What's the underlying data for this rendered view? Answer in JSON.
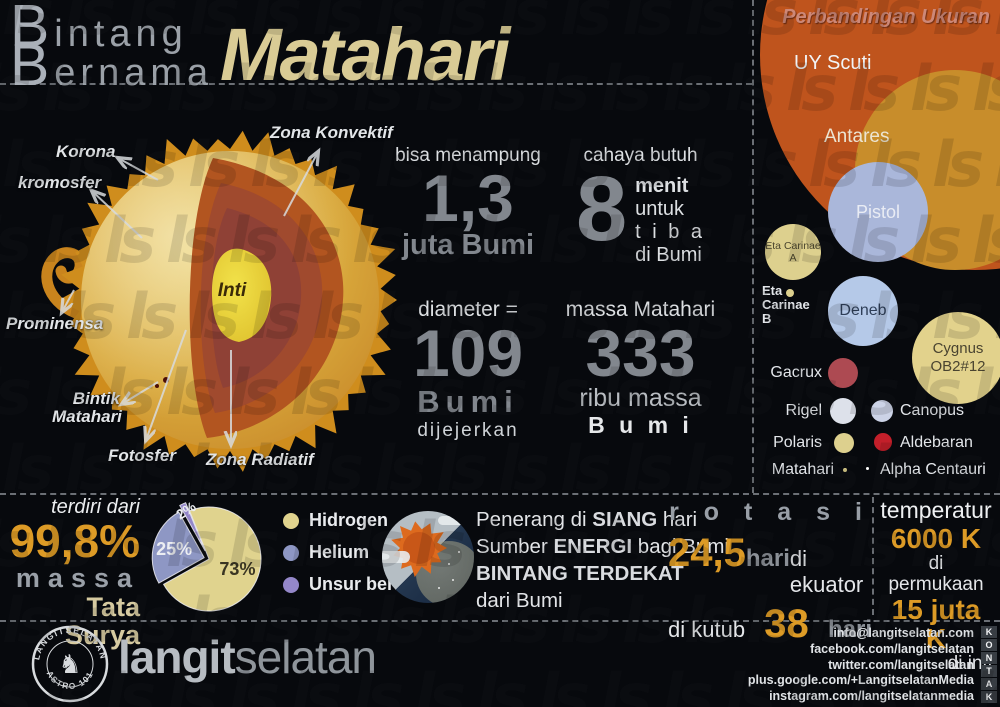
{
  "header": {
    "title_thin_1": "Bintang",
    "title_thin_2": "Bernama",
    "title_main": "Matahari",
    "accent_color": "#d9cb95"
  },
  "sun_diagram": {
    "labels": {
      "korona": "Korona",
      "kromosfer": "kromosfer",
      "zona_konvektif": "Zona Konvektif",
      "prominensa": "Prominensa",
      "bintik_1": "Bintik",
      "bintik_2": "Matahari",
      "fotosfer": "Fotosfer",
      "zona_radiatif": "Zona Radiatif",
      "inti": "Inti"
    }
  },
  "stats": {
    "capacity": {
      "label": "bisa menampung",
      "value": "1,3",
      "unit": "juta Bumi"
    },
    "light_travel": {
      "label": "cahaya butuh",
      "value": "8",
      "unit_1": "menit",
      "unit_2": "untuk",
      "unit_3": "t i b a",
      "unit_4": "di Bumi"
    },
    "diameter": {
      "label": "diameter =",
      "value": "109",
      "unit": "Bumi",
      "note": "dijejerkan"
    },
    "mass": {
      "label": "massa Matahari",
      "value": "333",
      "unit_1": "ribu massa",
      "unit_2": "B u m i"
    }
  },
  "size_comparison": {
    "title": "Perbandingan Ukuran",
    "title_color": "#cd8878",
    "stars": {
      "uy_scuti": {
        "name": "UY Scuti",
        "color": "#bf541d"
      },
      "antares": {
        "name": "Antares",
        "color": "#c88d2b"
      },
      "pistol": {
        "name": "Pistol",
        "color": "#aab7da"
      },
      "eta_carinae_a": {
        "name": "Eta Carinae A",
        "color": "#ddd08e"
      },
      "eta_carinae_b": {
        "name": "Eta Carinae B",
        "color": "#ddd08e"
      },
      "deneb": {
        "name": "Deneb",
        "color": "#b5c9e8"
      },
      "cygnus_ob2_12": {
        "name": "Cygnus OB2#12",
        "color": "#e2d28c"
      },
      "gacrux": {
        "name": "Gacrux",
        "color": "#ad4a52"
      },
      "rigel": {
        "name": "Rigel",
        "color": "#dde1ea"
      },
      "canopus": {
        "name": "Canopus",
        "color": "#ccd3e6"
      },
      "polaris": {
        "name": "Polaris",
        "color": "#ddd08e"
      },
      "aldebaran": {
        "name": "Aldebaran",
        "color": "#c31f2a"
      },
      "matahari": {
        "name": "Matahari",
        "color": "#e0d38e"
      },
      "alpha_centauri": {
        "name": "Alpha Centauri",
        "color": "#ffffff"
      }
    }
  },
  "composition": {
    "intro": "terdiri dari",
    "value": "99,8%",
    "label_1": "massa",
    "label_2": "Tata Surya",
    "value_color": "#dd9b26"
  },
  "chart_data": {
    "type": "pie",
    "labels": [
      "Hidrogen",
      "Helium",
      "Unsur berat"
    ],
    "values": [
      73,
      25,
      2
    ],
    "value_labels": [
      "73%",
      "25%",
      "2%"
    ],
    "colors": [
      "#e0d38e",
      "#8e97c4",
      "#9487c9"
    ],
    "legend_position": "right"
  },
  "facts": {
    "line1_pre": "Penerang di ",
    "line1_bold": "SIANG",
    "line1_post": " hari",
    "line2_pre": "Sumber ",
    "line2_bold": "ENERGI",
    "line2_post": " bagi Bumi",
    "line3_bold": "BINTANG TERDEKAT",
    "line4": "dari Bumi"
  },
  "rotation": {
    "title": "r o t a s i",
    "equator_value": "24,5",
    "equator_unit": "hari",
    "equator_label": "di ekuator",
    "pole_label": "di kutub",
    "pole_value": "38",
    "pole_unit": "hari",
    "accent_color": "#dd9b26"
  },
  "temperature": {
    "title": "temperatur",
    "surface_value": "6000 K",
    "surface_label": "di permukaan",
    "core_value": "15 juta K",
    "core_label": "di inti"
  },
  "footer": {
    "brand_bold": "langit",
    "brand_light": "selatan",
    "stamp_top": "LANGITSELATAN",
    "stamp_bottom": "ASTRO 101",
    "kontak": "KONTAK",
    "contacts": [
      "info@langitselatan.com",
      "facebook.com/langitselatan",
      "twitter.com/langitselatan",
      "plus.google.com/+LangitselatanMedia",
      "instagram.com/langitselatanmedia"
    ]
  }
}
